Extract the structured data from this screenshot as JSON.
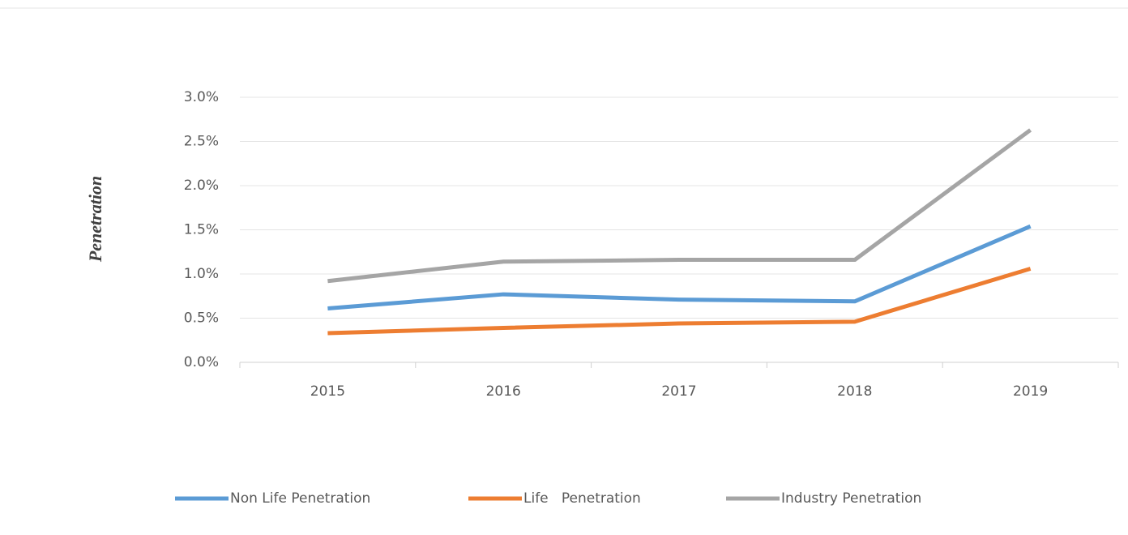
{
  "chart_data": {
    "type": "line",
    "y_label": "Penetration",
    "categories": [
      "2015",
      "2016",
      "2017",
      "2018",
      "2019"
    ],
    "series": [
      {
        "name": "Non Life Penetration",
        "color": "#5b9bd5",
        "values": [
          0.61,
          0.77,
          0.71,
          0.69,
          1.54
        ]
      },
      {
        "name": "Life   Penetration",
        "color": "#ed7d31",
        "values": [
          0.33,
          0.39,
          0.44,
          0.46,
          1.06
        ]
      },
      {
        "name": "Industry Penetration",
        "color": "#a5a5a5",
        "values": [
          0.92,
          1.14,
          1.16,
          1.16,
          2.63
        ]
      }
    ],
    "ylim": [
      0,
      3
    ],
    "yticks": [
      {
        "value": 0,
        "label": "0.0%"
      },
      {
        "value": 0.5,
        "label": "0.5%"
      },
      {
        "value": 1,
        "label": "1.0%"
      },
      {
        "value": 1.5,
        "label": "1.5%"
      },
      {
        "value": 2,
        "label": "2.0%"
      },
      {
        "value": 2.5,
        "label": "2.5%"
      },
      {
        "value": 3,
        "label": "3.0%"
      }
    ],
    "grid": true,
    "legend": "bottom"
  }
}
